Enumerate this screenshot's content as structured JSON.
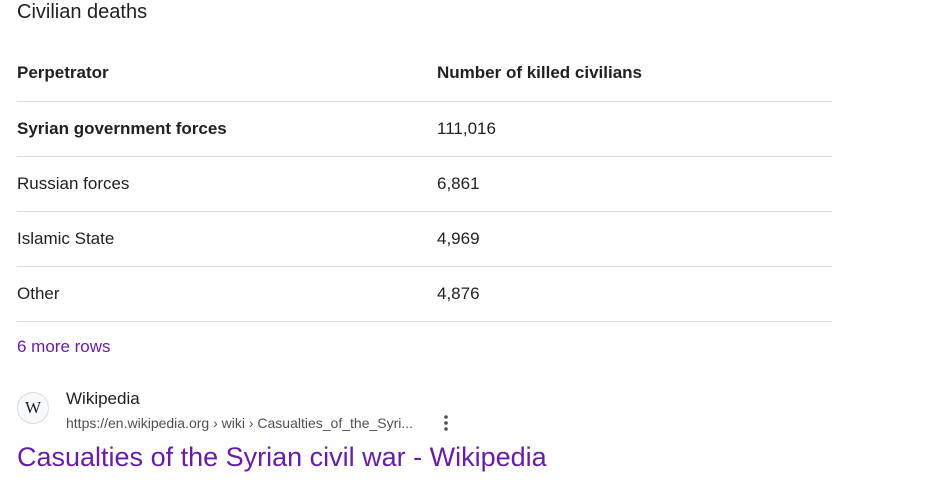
{
  "caption": "Civilian deaths",
  "table": {
    "headers": [
      "Perpetrator",
      "Number of killed civilians"
    ],
    "rows": [
      [
        "Syrian government forces",
        "111,016"
      ],
      [
        "Russian forces",
        "6,861"
      ],
      [
        "Islamic State",
        "4,969"
      ],
      [
        "Other",
        "4,876"
      ]
    ]
  },
  "more_rows": "6 more rows",
  "result": {
    "favicon_letter": "W",
    "site_name": "Wikipedia",
    "url": "https://en.wikipedia.org › wiki › Casualties_of_the_Syri...",
    "title": "Casualties of the Syrian civil war - Wikipedia",
    "menu_icon": "more-vert-icon"
  },
  "colors": {
    "visited_link": "#681da8",
    "divider": "#dadce0",
    "text": "#202124",
    "url_text": "#4d5156"
  }
}
